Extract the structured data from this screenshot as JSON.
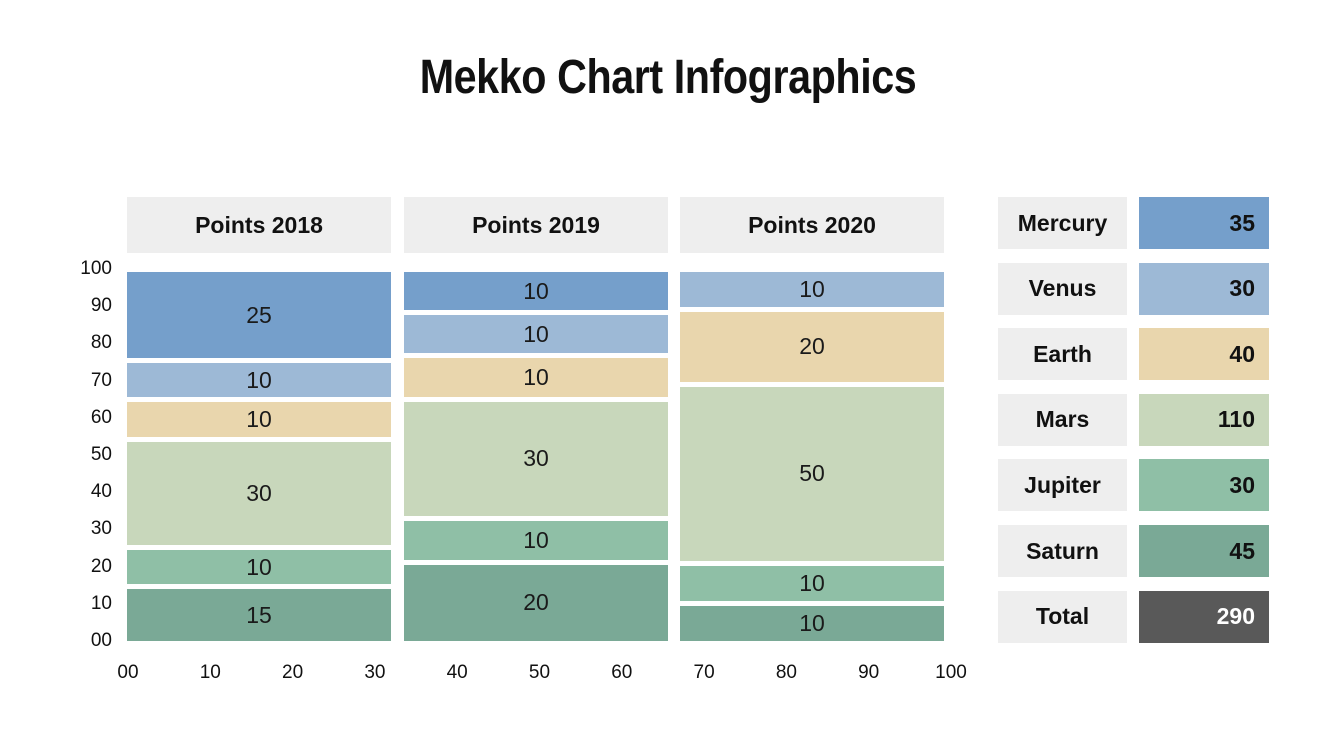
{
  "title": "Mekko Chart Infographics",
  "chart_data": {
    "type": "mekko",
    "title": "Mekko Chart Infographics",
    "columns": [
      {
        "label": "Points 2018",
        "segments": [
          {
            "series": "Saturn",
            "value": 15
          },
          {
            "series": "Jupiter",
            "value": 10
          },
          {
            "series": "Mars",
            "value": 30
          },
          {
            "series": "Earth",
            "value": 10
          },
          {
            "series": "Venus",
            "value": 10
          },
          {
            "series": "Mercury",
            "value": 25
          }
        ]
      },
      {
        "label": "Points 2019",
        "segments": [
          {
            "series": "Saturn",
            "value": 20
          },
          {
            "series": "Jupiter",
            "value": 10
          },
          {
            "series": "Mars",
            "value": 30
          },
          {
            "series": "Earth",
            "value": 10
          },
          {
            "series": "Venus",
            "value": 10
          },
          {
            "series": "Mercury",
            "value": 10
          }
        ]
      },
      {
        "label": "Points 2020",
        "segments": [
          {
            "series": "Saturn",
            "value": 10
          },
          {
            "series": "Jupiter",
            "value": 10
          },
          {
            "series": "Mars",
            "value": 50
          },
          {
            "series": "Earth",
            "value": 20
          },
          {
            "series": "Venus",
            "value": 10
          }
        ]
      }
    ],
    "y_ticks": [
      "00",
      "10",
      "20",
      "30",
      "40",
      "50",
      "60",
      "70",
      "80",
      "90",
      "100"
    ],
    "x_ticks": [
      "00",
      "10",
      "20",
      "30",
      "40",
      "50",
      "60",
      "70",
      "80",
      "90",
      "100"
    ],
    "ylim": [
      0,
      100
    ],
    "xlim": [
      0,
      100
    ],
    "grid": false,
    "legend_position": "right",
    "legend": [
      {
        "name": "Mercury",
        "total": "35",
        "color": "#759fcb"
      },
      {
        "name": "Venus",
        "total": "30",
        "color": "#9db9d6"
      },
      {
        "name": "Earth",
        "total": "40",
        "color": "#e9d6ad"
      },
      {
        "name": "Mars",
        "total": "110",
        "color": "#c8d7bb"
      },
      {
        "name": "Jupiter",
        "total": "30",
        "color": "#8fbfa6"
      },
      {
        "name": "Saturn",
        "total": "45",
        "color": "#7aa996"
      },
      {
        "name": "Total",
        "total": "290",
        "color": "#595959"
      }
    ]
  }
}
